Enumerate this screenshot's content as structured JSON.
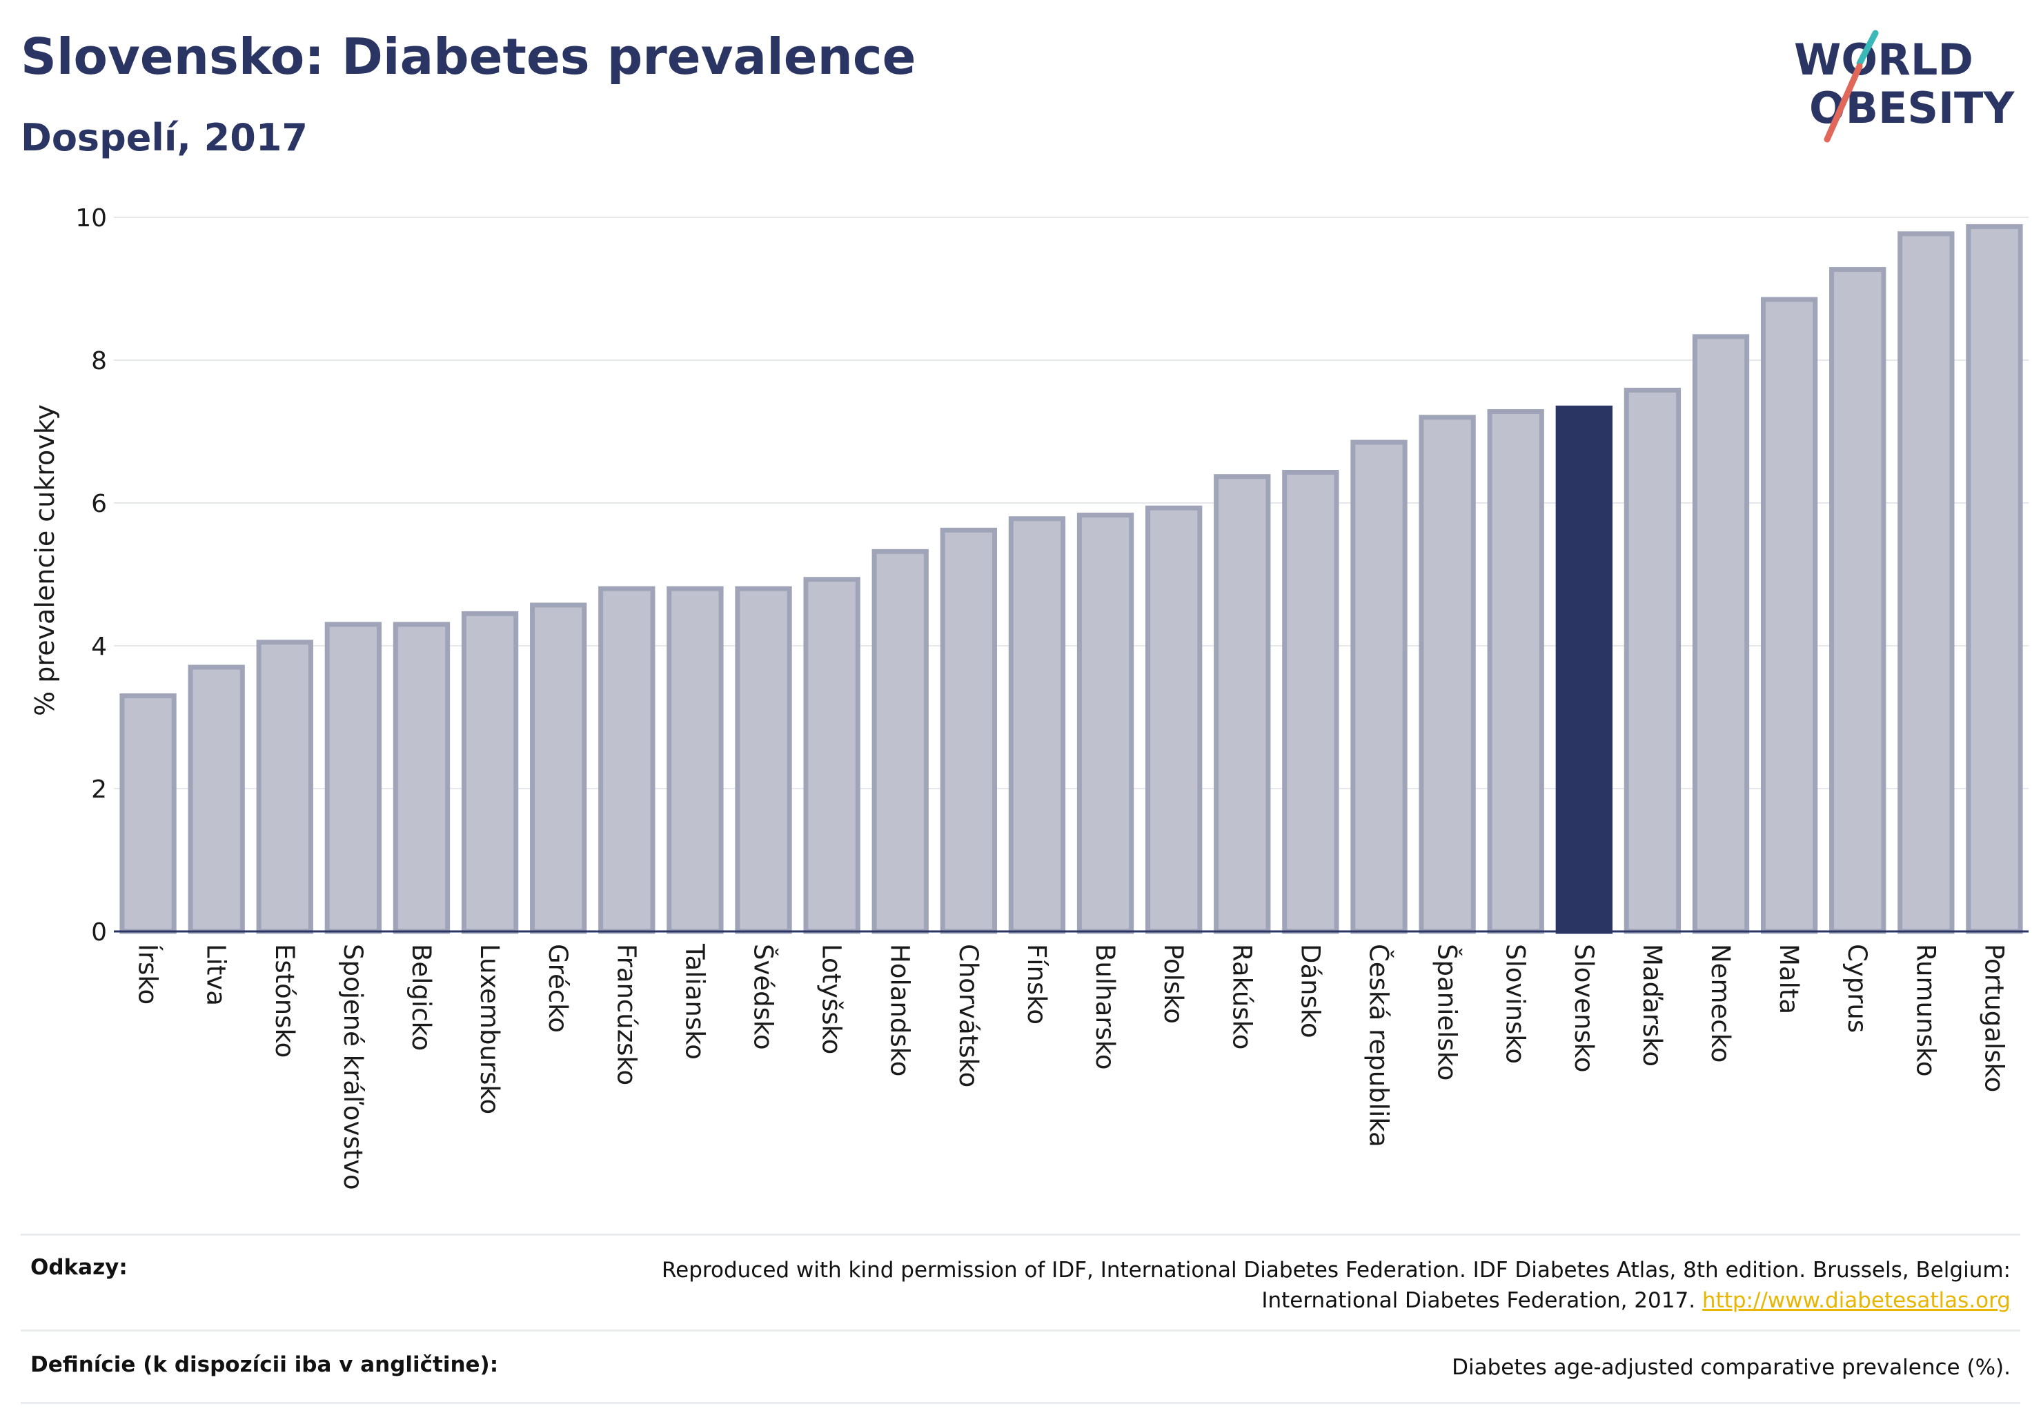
{
  "header": {
    "title": "Slovensko: Diabetes prevalence",
    "subtitle": "Dospelí, 2017"
  },
  "logo": {
    "line1": "WORLD",
    "line2": "OBESITY",
    "accent_colors": [
      "#e0685a",
      "#3ab8b7"
    ],
    "text_color": "#2a3563"
  },
  "chart_data": {
    "type": "bar",
    "ylabel": "% prevalencie cukrovky",
    "xlabel": "",
    "ylim": [
      0,
      10
    ],
    "yticks": [
      0,
      2,
      4,
      6,
      8,
      10
    ],
    "grid": true,
    "highlight": "Slovensko",
    "colors": {
      "default": "#bfc2ce",
      "default_border": "#a0a4b9",
      "highlight": "#2a3563"
    },
    "categories": [
      "Írsko",
      "Litva",
      "Estónsko",
      "Spojené kráľovstvo",
      "Belgicko",
      "Luxembursko",
      "Grécko",
      "Francúzsko",
      "Taliansko",
      "Švédsko",
      "Lotyšsko",
      "Holandsko",
      "Chorvátsko",
      "Fínsko",
      "Bulharsko",
      "Polsko",
      "Rakúsko",
      "Dánsko",
      "Česká republika",
      "Španielsko",
      "Slovinsko",
      "Slovensko",
      "Maďarsko",
      "Nemecko",
      "Malta",
      "Cyprus",
      "Rumunsko",
      "Portugalsko"
    ],
    "values": [
      3.3,
      3.7,
      4.05,
      4.3,
      4.3,
      4.45,
      4.57,
      4.8,
      4.8,
      4.8,
      4.93,
      5.32,
      5.62,
      5.78,
      5.83,
      5.93,
      6.37,
      6.43,
      6.85,
      7.2,
      7.28,
      7.33,
      7.58,
      8.33,
      8.85,
      9.27,
      9.77,
      9.87
    ]
  },
  "footer": {
    "references_label": "Odkazy:",
    "references_text_1": "Reproduced with kind permission of IDF, International Diabetes Federation. IDF Diabetes Atlas, 8th edition. Brussels, Belgium:",
    "references_text_2": "International Diabetes Federation, 2017.",
    "references_link": "http://www.diabetesatlas.org",
    "definitions_label": "Definície (k dispozícii iba v angličtine):",
    "definitions_text": "Diabetes age-adjusted comparative prevalence (%)."
  }
}
